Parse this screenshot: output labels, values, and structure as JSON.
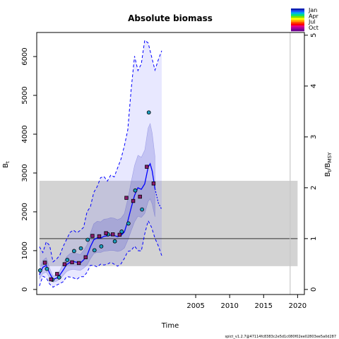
{
  "chart_data": {
    "type": "line",
    "title": "Absolute biomass",
    "xlabel": "Time",
    "ylabel_left": "B",
    "ylabel_left_sub": "t",
    "ylabel_right": "B",
    "ylabel_right_sub": "t",
    "ylabel_right_suffix": "/B",
    "ylabel_right_suffix_sub": "MSY",
    "footnote": "spict_v1.2.7@47114fc8383c2e5d1c080f02ee02803ee5a0d287",
    "xlim": [
      1981.6,
      2021.0
    ],
    "ylim": [
      -130,
      6620
    ],
    "x_ticks": [
      2005,
      2010,
      2015,
      2020
    ],
    "y_ticks": [
      0,
      1000,
      2000,
      3000,
      4000,
      5000,
      6000
    ],
    "y2_ticks": [
      0,
      1,
      2,
      3,
      4,
      5
    ],
    "bmsy": 1310,
    "bmsy_band": [
      600,
      2800
    ],
    "band_x": [
      1982.0,
      2020.0
    ],
    "end_of_data_line_x": 2018.9,
    "legend": {
      "labels": [
        "Jan",
        "Apr",
        "Jul",
        "Oct"
      ],
      "colors": [
        "#0a1fb4",
        "#1a5bff",
        "#00b4e6",
        "#00e080",
        "#7fe000",
        "#ffff00",
        "#ffb400",
        "#ff5000",
        "#ff0000",
        "#e0008a",
        "#a0009a",
        "#700090"
      ]
    },
    "series": [
      {
        "name": "",
        "kind": "estimate",
        "color": "#0000ff",
        "x": [
          1982.0,
          1982.5,
          1983.0,
          1983.5,
          1984.0,
          1984.5,
          1985.0,
          1985.5,
          1986.0,
          1986.5,
          1987.0,
          1987.5,
          1988.0,
          1988.5,
          1989.0,
          1989.5,
          1990.0,
          1990.5,
          1991.0,
          1991.5,
          1992.0,
          1992.5,
          1993.0,
          1993.5,
          1994.0,
          1994.5,
          1995.0,
          1995.5,
          1996.0,
          1996.5,
          1997.0,
          1997.5,
          1998.0,
          1998.3,
          1998.6,
          1999.0
        ],
        "values": [
          380,
          570,
          620,
          420,
          260,
          290,
          370,
          500,
          640,
          700,
          720,
          700,
          680,
          760,
          870,
          1100,
          1280,
          1330,
          1320,
          1370,
          1380,
          1400,
          1390,
          1360,
          1390,
          1480,
          1760,
          2100,
          2420,
          2620,
          2580,
          2720,
          3150,
          3240,
          3050,
          2600
        ]
      },
      {
        "name": "",
        "kind": "forecast",
        "color": "#0000ff",
        "x": [
          1999.0,
          1999.5,
          2000.0
        ],
        "values": [
          2600,
          2230,
          2060
        ]
      },
      {
        "name": "",
        "kind": "ci-upper",
        "color": "#0000ff",
        "x": [
          1982.0,
          1982.5,
          1983.0,
          1983.5,
          1984.0,
          1984.5,
          1985.0,
          1985.5,
          1986.0,
          1986.5,
          1987.0,
          1987.5,
          1988.0,
          1988.5,
          1989.0,
          1989.5,
          1990.0,
          1990.5,
          1991.0,
          1991.5,
          1992.0,
          1992.5,
          1993.0,
          1993.5,
          1994.0,
          1994.5,
          1995.0,
          1995.5,
          1996.0,
          1996.5,
          1997.0,
          1997.5,
          1998.0,
          1998.5,
          1999.0,
          1999.5,
          2000.0
        ],
        "values": [
          1100,
          950,
          1230,
          1130,
          710,
          780,
          880,
          1110,
          1290,
          1470,
          1530,
          1460,
          1520,
          1600,
          2000,
          2130,
          2500,
          2650,
          2880,
          2910,
          2790,
          2950,
          2900,
          3130,
          3360,
          3700,
          4110,
          5150,
          6010,
          5640,
          5810,
          6420,
          6350,
          6000,
          5650,
          5920,
          6150
        ]
      },
      {
        "name": "",
        "kind": "ci-lower",
        "color": "#0000ff",
        "x": [
          1982.0,
          1982.5,
          1983.0,
          1983.5,
          1984.0,
          1984.5,
          1985.0,
          1985.5,
          1986.0,
          1986.5,
          1987.0,
          1987.5,
          1988.0,
          1988.5,
          1989.0,
          1989.5,
          1990.0,
          1990.5,
          1991.0,
          1991.5,
          1992.0,
          1992.5,
          1993.0,
          1993.5,
          1994.0,
          1994.5,
          1995.0,
          1995.5,
          1996.0,
          1996.5,
          1997.0,
          1997.5,
          1998.0,
          1998.5,
          1999.0,
          1999.5,
          2000.0
        ],
        "values": [
          90,
          340,
          300,
          140,
          60,
          110,
          150,
          200,
          330,
          320,
          300,
          260,
          330,
          330,
          440,
          620,
          620,
          580,
          650,
          630,
          650,
          700,
          650,
          600,
          660,
          800,
          980,
          1000,
          1120,
          1000,
          990,
          1430,
          1770,
          1600,
          1320,
          1120,
          870
        ]
      },
      {
        "name": "",
        "kind": "index",
        "color": "#1b9dbf",
        "x": [
          1982.1,
          1983.1,
          1983.9,
          1984.9,
          1986.1,
          1987.1,
          1988.1,
          1989.1,
          1990.1,
          1991.1,
          1992.1,
          1993.1,
          1994.1,
          1995.1,
          1996.1,
          1997.1,
          1998.1
        ],
        "values": [
          490,
          530,
          250,
          310,
          760,
          990,
          1060,
          1280,
          1010,
          1110,
          1420,
          1240,
          1490,
          1700,
          2550,
          2060,
          4560
        ]
      },
      {
        "name": "",
        "kind": "index",
        "color": "#8b1a6e",
        "x": [
          1982.8,
          1983.7,
          1984.6,
          1985.7,
          1986.8,
          1987.8,
          1988.8,
          1989.8,
          1990.8,
          1991.8,
          1992.8,
          1993.8,
          1994.8,
          1995.8,
          1996.8,
          1997.8,
          1998.8
        ],
        "values": [
          690,
          260,
          400,
          650,
          700,
          680,
          830,
          1380,
          1370,
          1450,
          1420,
          1410,
          2360,
          2280,
          2390,
          3160,
          2730
        ]
      }
    ]
  }
}
